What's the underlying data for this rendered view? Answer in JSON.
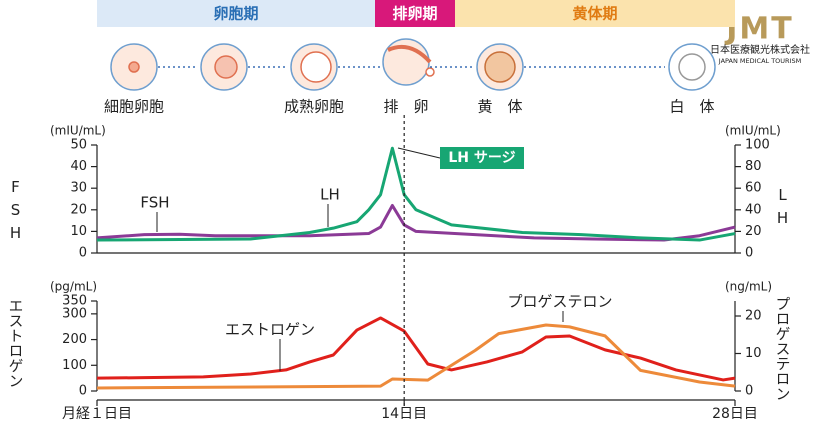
{
  "phases": [
    {
      "label": "卵胞期",
      "color": "#dce9f7",
      "text_color": "#2a6fb5"
    },
    {
      "label": "排卵期",
      "color": "#d8187a",
      "text_color": "#ffffff"
    },
    {
      "label": "黄体期",
      "color": "#fbe3ad",
      "text_color": "#e07b12"
    }
  ],
  "stages": [
    "細胞卵胞",
    "成熟卵胞",
    "排　卵",
    "黄　体",
    "白　体"
  ],
  "logo": {
    "mark": "JMT",
    "company": "日本医療観光株式会社",
    "english": "JAPAN MEDICAL TOURISM"
  },
  "chart_data": [
    {
      "type": "line",
      "ylabel": "FSH",
      "y2label": "LH",
      "ylabel_unit": "(mIU/mL)",
      "y2label_unit": "(mIU/mL)",
      "xlim": [
        1,
        28
      ],
      "ylim": [
        0,
        50
      ],
      "yticks": [
        0,
        10,
        20,
        30,
        40,
        50
      ],
      "y2lim": [
        0,
        100
      ],
      "y2ticks": [
        0,
        20,
        40,
        60,
        80,
        100
      ],
      "annotation": "LH サージ",
      "series": [
        {
          "name": "FSH",
          "color": "#8b3a96",
          "x": [
            1,
            3,
            4.5,
            6,
            10,
            12.5,
            13,
            13.5,
            14,
            14.5,
            17,
            19.5,
            22,
            25,
            26.5,
            28
          ],
          "values": [
            7,
            8.5,
            8.7,
            8,
            8,
            9,
            12,
            22,
            13,
            10,
            8.5,
            7,
            6.5,
            6,
            8,
            12
          ]
        },
        {
          "name": "LH",
          "color": "#17a673",
          "axis": "y2",
          "x": [
            1,
            7.5,
            10,
            11,
            12,
            12.5,
            13,
            13.5,
            14,
            14.5,
            16,
            19,
            21.5,
            24,
            26.5,
            28
          ],
          "values": [
            12,
            13,
            19,
            23,
            29,
            40,
            54,
            97,
            54,
            40,
            26,
            19,
            17,
            14,
            12,
            18
          ]
        }
      ]
    },
    {
      "type": "line",
      "ylabel": "エストロゲン",
      "y2label": "プロゲステロン",
      "ylabel_unit": "(pg/mL)",
      "y2label_unit": "(ng/mL)",
      "xlim": [
        1,
        28
      ],
      "ylim": [
        0,
        350
      ],
      "yticks": [
        0,
        100,
        200,
        300,
        350
      ],
      "y2lim": [
        0,
        24
      ],
      "y2ticks": [
        0,
        10,
        20
      ],
      "xticks": [
        {
          "value": 1,
          "label": "月経１日目"
        },
        {
          "value": 14,
          "label": "14日目"
        },
        {
          "value": 28,
          "label": "28日目"
        }
      ],
      "series": [
        {
          "name": "エストロゲン",
          "color": "#e0201b",
          "x": [
            1,
            3,
            5.5,
            7.5,
            9,
            10,
            11,
            12,
            13,
            14,
            15,
            16,
            17.5,
            19,
            20,
            21,
            22.5,
            24,
            25.5,
            27.5,
            28
          ],
          "values": [
            50,
            52,
            55,
            66,
            82,
            113,
            140,
            237,
            284,
            233,
            105,
            82,
            113,
            152,
            210,
            214,
            160,
            128,
            82,
            43,
            50
          ]
        },
        {
          "name": "プロゲステロン",
          "color": "#ed8a3a",
          "axis": "y2",
          "x": [
            1,
            13,
            13.5,
            15,
            17,
            18,
            20,
            21,
            22.5,
            24,
            26.5,
            28
          ],
          "values": [
            0.8,
            1.3,
            3.2,
            2.9,
            10.8,
            15.3,
            17.6,
            17.1,
            14.7,
            5.5,
            2.4,
            1.3
          ]
        }
      ]
    }
  ]
}
